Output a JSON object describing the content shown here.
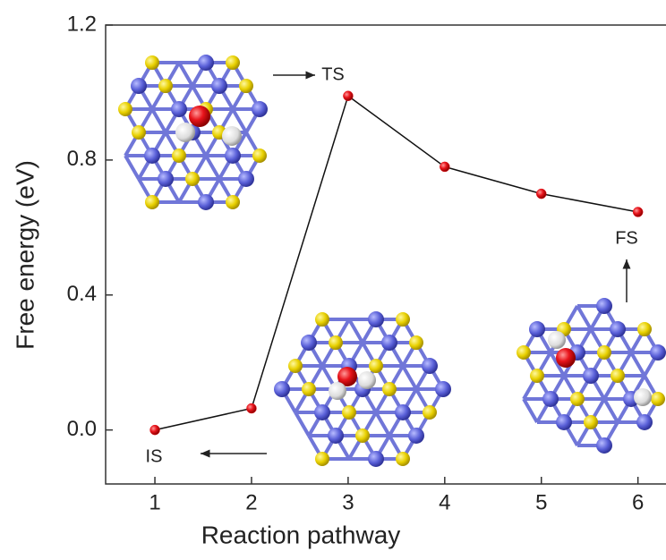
{
  "chart_data": {
    "type": "line",
    "x_label": "Reaction pathway",
    "y_label": "Free energy (eV)",
    "x": [
      1,
      2,
      3,
      4,
      5,
      6
    ],
    "series": [
      {
        "color": "#e8141b",
        "values": [
          0.0,
          0.064,
          0.99,
          0.78,
          0.7,
          0.646
        ]
      }
    ],
    "xlim": [
      0.49,
      6.42
    ],
    "ylim": [
      -0.16,
      1.2
    ],
    "xticks": [
      1,
      2,
      3,
      4,
      5,
      6
    ],
    "yticks": [
      {
        "value": 0,
        "label": "0.0"
      },
      0.4,
      0.8,
      1.2
    ],
    "annotations": [
      {
        "text": "IS"
      },
      {
        "text": "TS"
      },
      {
        "text": "FS"
      }
    ]
  }
}
